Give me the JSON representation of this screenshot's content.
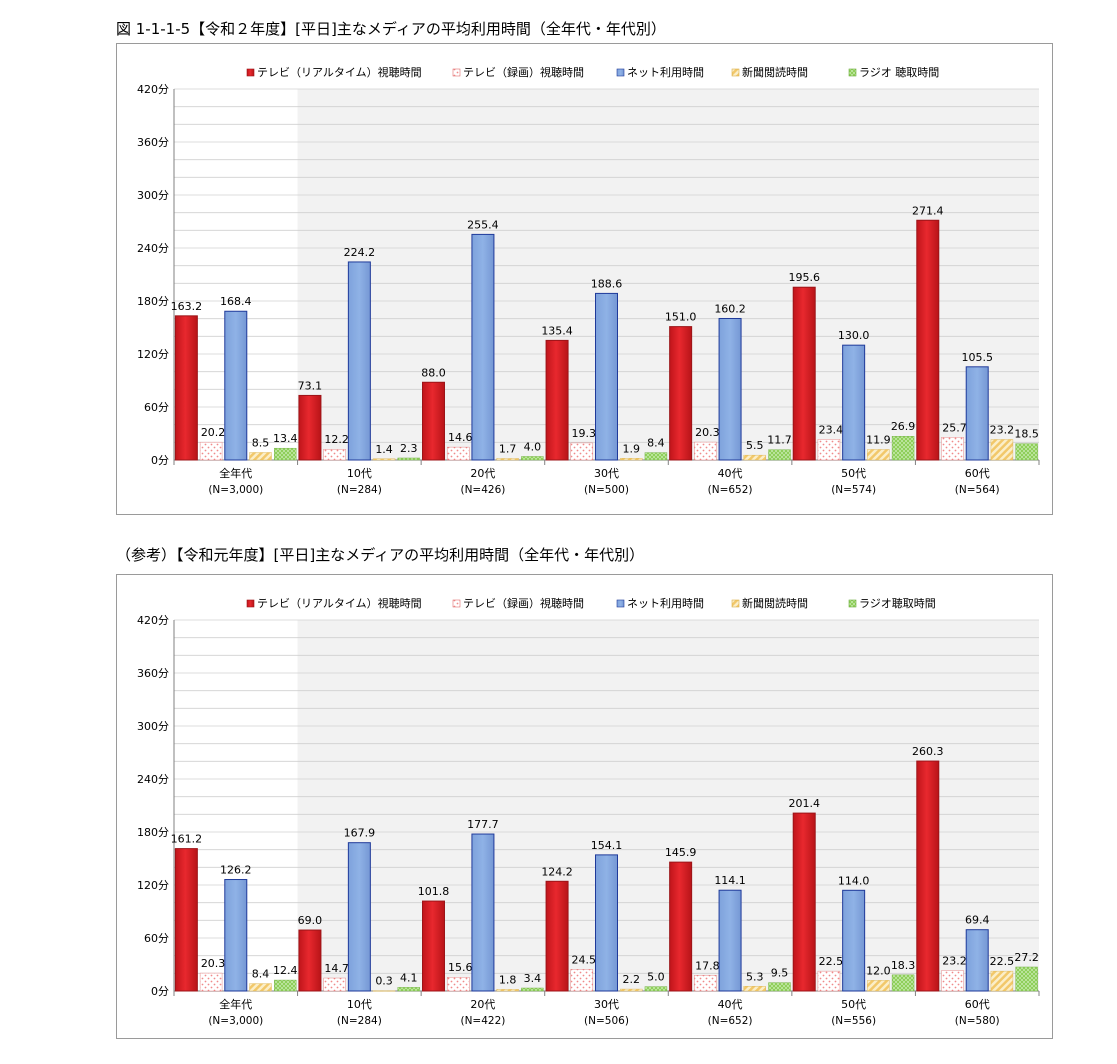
{
  "figure_title": "図 1-1-1-5【令和２年度】[平日]主なメディアの平均利用時間（全年代・年代別）",
  "reference_title": "（参考）【令和元年度】[平日]主なメディアの平均利用時間（全年代・年代別）",
  "colors": {
    "tv_realtime": "#e8282e",
    "tv_recorded": "#f08a8a",
    "internet": "#8fb2e6",
    "newspaper": "#f2c86a",
    "radio": "#8fcf5a",
    "plot_shade": "#f2f2f2",
    "grid": "#d0d0d0"
  },
  "chart_data": [
    {
      "type": "bar",
      "title": "図 1-1-1-5【令和２年度】[平日]主なメディアの平均利用時間（全年代・年代別）",
      "categories": [
        "全年代",
        "10代",
        "20代",
        "30代",
        "40代",
        "50代",
        "60代"
      ],
      "sample_sizes": [
        "(N=3,000)",
        "(N=284)",
        "(N=426)",
        "(N=500)",
        "(N=652)",
        "(N=574)",
        "(N=564)"
      ],
      "yticks": [
        "0分",
        "60分",
        "120分",
        "180分",
        "240分",
        "300分",
        "360分",
        "420分"
      ],
      "ylim": [
        0,
        420
      ],
      "legend_position": "top",
      "series": [
        {
          "name": "テレビ（リアルタイム）視聴時間",
          "values": [
            163.2,
            73.1,
            88.0,
            135.4,
            151.0,
            195.6,
            271.4
          ],
          "labels": [
            "163.2",
            "73.1",
            "88.0",
            "135.4",
            "151.0",
            "195.6",
            "271.4"
          ]
        },
        {
          "name": "テレビ（録画）視聴時間",
          "values": [
            20.2,
            12.2,
            14.6,
            19.3,
            20.3,
            23.4,
            25.7
          ],
          "labels": [
            "20.2",
            "12.2",
            "14.6",
            "19.3",
            "20.3",
            "23.4",
            "25.7"
          ]
        },
        {
          "name": "ネット利用時間",
          "values": [
            168.4,
            224.2,
            255.4,
            188.6,
            160.2,
            130.0,
            105.5
          ],
          "labels": [
            "168.4",
            "224.2",
            "255.4",
            "188.6",
            "160.2",
            "130.0",
            "105.5"
          ]
        },
        {
          "name": "新聞閲読時間",
          "values": [
            8.5,
            1.4,
            1.7,
            1.9,
            5.5,
            11.9,
            23.2
          ],
          "labels": [
            "8.5",
            "1.4",
            "1.7",
            "1.9",
            "5.5",
            "11.9",
            "23.2"
          ]
        },
        {
          "name": "ラジオ 聴取時間",
          "values": [
            13.4,
            2.3,
            4.0,
            8.4,
            11.7,
            26.9,
            18.5
          ],
          "labels": [
            "13.4",
            "2.3",
            "4.0",
            "8.4",
            "11.7",
            "26.9",
            "18.5"
          ]
        }
      ]
    },
    {
      "type": "bar",
      "title": "（参考）【令和元年度】[平日]主なメディアの平均利用時間（全年代・年代別）",
      "categories": [
        "全年代",
        "10代",
        "20代",
        "30代",
        "40代",
        "50代",
        "60代"
      ],
      "sample_sizes": [
        "(N=3,000)",
        "(N=284)",
        "(N=422)",
        "(N=506)",
        "(N=652)",
        "(N=556)",
        "(N=580)"
      ],
      "yticks": [
        "0分",
        "60分",
        "120分",
        "180分",
        "240分",
        "300分",
        "360分",
        "420分"
      ],
      "ylim": [
        0,
        420
      ],
      "legend_position": "top",
      "series": [
        {
          "name": "テレビ（リアルタイム）視聴時間",
          "values": [
            161.2,
            69.0,
            101.8,
            124.2,
            145.9,
            201.4,
            260.3
          ],
          "labels": [
            "161.2",
            "69.0",
            "101.8",
            "124.2",
            "145.9",
            "201.4",
            "260.3"
          ]
        },
        {
          "name": "テレビ（録画）視聴時間",
          "values": [
            20.3,
            14.7,
            15.6,
            24.5,
            17.8,
            22.5,
            23.2
          ],
          "labels": [
            "20.3",
            "14.7",
            "15.6",
            "24.5",
            "17.8",
            "22.5",
            "23.2"
          ]
        },
        {
          "name": "ネット利用時間",
          "values": [
            126.2,
            167.9,
            177.7,
            154.1,
            114.1,
            114.0,
            69.4
          ],
          "labels": [
            "126.2",
            "167.9",
            "177.7",
            "154.1",
            "114.1",
            "114.0",
            "69.4"
          ]
        },
        {
          "name": "新聞閲読時間",
          "values": [
            8.4,
            0.3,
            1.8,
            2.2,
            5.3,
            12.0,
            22.5
          ],
          "labels": [
            "8.4",
            "0.3",
            "1.8",
            "2.2",
            "5.3",
            "12.0",
            "22.5"
          ]
        },
        {
          "name": "ラジオ聴取時間",
          "values": [
            12.4,
            4.1,
            3.4,
            5.0,
            9.5,
            18.3,
            27.2
          ],
          "labels": [
            "12.4",
            "4.1",
            "3.4",
            "5.0",
            "9.5",
            "18.3",
            "27.2"
          ]
        }
      ]
    }
  ]
}
